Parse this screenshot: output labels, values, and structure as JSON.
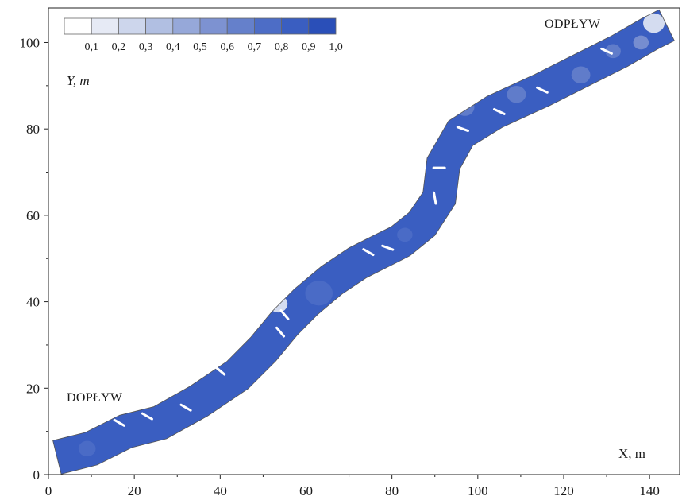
{
  "chart_data": {
    "type": "heatmap",
    "title": "",
    "xlabel": "X, m",
    "ylabel": "Y, m",
    "xlim": [
      0,
      147
    ],
    "ylim": [
      0,
      108
    ],
    "x_ticks": [
      0,
      20,
      40,
      60,
      80,
      100,
      120,
      140
    ],
    "y_ticks": [
      0,
      20,
      40,
      60,
      80,
      100
    ],
    "grid": false,
    "legend_placement": "top-left",
    "colorbar": {
      "ticks": [
        "0,1",
        "0,2",
        "0,3",
        "0,4",
        "0,5",
        "0,6",
        "0,7",
        "0,8",
        "0,9",
        "1,0"
      ],
      "bins": [
        {
          "level": 0.0,
          "color": "#ffffff"
        },
        {
          "level": 0.1,
          "color": "#e6eaf5"
        },
        {
          "level": 0.2,
          "color": "#cdd6ec"
        },
        {
          "level": 0.3,
          "color": "#b1bfe2"
        },
        {
          "level": 0.4,
          "color": "#96a8d9"
        },
        {
          "level": 0.5,
          "color": "#7d92d1"
        },
        {
          "level": 0.6,
          "color": "#6580cb"
        },
        {
          "level": 0.7,
          "color": "#4d6dc6"
        },
        {
          "level": 0.8,
          "color": "#3a5ec1"
        },
        {
          "level": 0.9,
          "color": "#2a4fb8"
        }
      ]
    },
    "annotations": [
      {
        "text": "DOPŁYW",
        "x": 5,
        "y": 19
      },
      {
        "text": "ODPŁYW",
        "x": 117,
        "y": 102.5
      }
    ],
    "channel": {
      "centerline": [
        [
          2,
          4
        ],
        [
          10,
          6
        ],
        [
          18,
          10
        ],
        [
          26,
          12
        ],
        [
          35,
          17
        ],
        [
          44,
          23
        ],
        [
          50,
          29
        ],
        [
          55,
          35
        ],
        [
          60,
          40
        ],
        [
          66,
          45
        ],
        [
          72,
          49
        ],
        [
          78,
          52
        ],
        [
          82,
          54
        ],
        [
          87,
          58
        ],
        [
          91,
          64
        ],
        [
          92,
          72
        ],
        [
          96,
          79
        ],
        [
          104,
          84
        ],
        [
          115,
          89
        ],
        [
          125,
          94
        ],
        [
          133,
          98
        ],
        [
          140,
          102
        ],
        [
          144,
          104
        ]
      ],
      "half_width": 4,
      "fill_level": 0.8
    },
    "cross_sections": [
      {
        "x": 16.5,
        "y": 12.0,
        "angle": 30
      },
      {
        "x": 23,
        "y": 13.5,
        "angle": 30
      },
      {
        "x": 32,
        "y": 15.5,
        "angle": 30
      },
      {
        "x": 40,
        "y": 24,
        "angle": 40
      },
      {
        "x": 54,
        "y": 33,
        "angle": 50
      },
      {
        "x": 55,
        "y": 37,
        "angle": 50
      },
      {
        "x": 74.5,
        "y": 51.5,
        "angle": 30
      },
      {
        "x": 79,
        "y": 52.5,
        "angle": 20
      },
      {
        "x": 90,
        "y": 64,
        "angle": 80
      },
      {
        "x": 91,
        "y": 71,
        "angle": 0
      },
      {
        "x": 96,
        "y": 62,
        "angle": 0
      },
      {
        "x": 96.5,
        "y": 80,
        "angle": 20
      },
      {
        "x": 105,
        "y": 84,
        "angle": 25
      },
      {
        "x": 115,
        "y": 89,
        "angle": 25
      },
      {
        "x": 130,
        "y": 98,
        "angle": 25
      }
    ],
    "low_value_patches": [
      {
        "x": 53.5,
        "y": 39.5,
        "r": 2.2,
        "level": 0.1
      },
      {
        "x": 141,
        "y": 104.5,
        "r": 2.5,
        "level": 0.1
      },
      {
        "x": 138,
        "y": 100,
        "r": 1.8,
        "level": 0.5
      },
      {
        "x": 109,
        "y": 88,
        "r": 2.2,
        "level": 0.6
      },
      {
        "x": 124,
        "y": 92.5,
        "r": 2.2,
        "level": 0.6
      },
      {
        "x": 131.5,
        "y": 98,
        "r": 1.8,
        "level": 0.6
      },
      {
        "x": 97,
        "y": 85,
        "r": 2.2,
        "level": 0.6
      },
      {
        "x": 63,
        "y": 42,
        "r": 3.2,
        "level": 0.7
      },
      {
        "x": 83,
        "y": 55.5,
        "r": 1.8,
        "level": 0.7
      },
      {
        "x": 9,
        "y": 6,
        "r": 2.0,
        "level": 0.7
      }
    ]
  }
}
